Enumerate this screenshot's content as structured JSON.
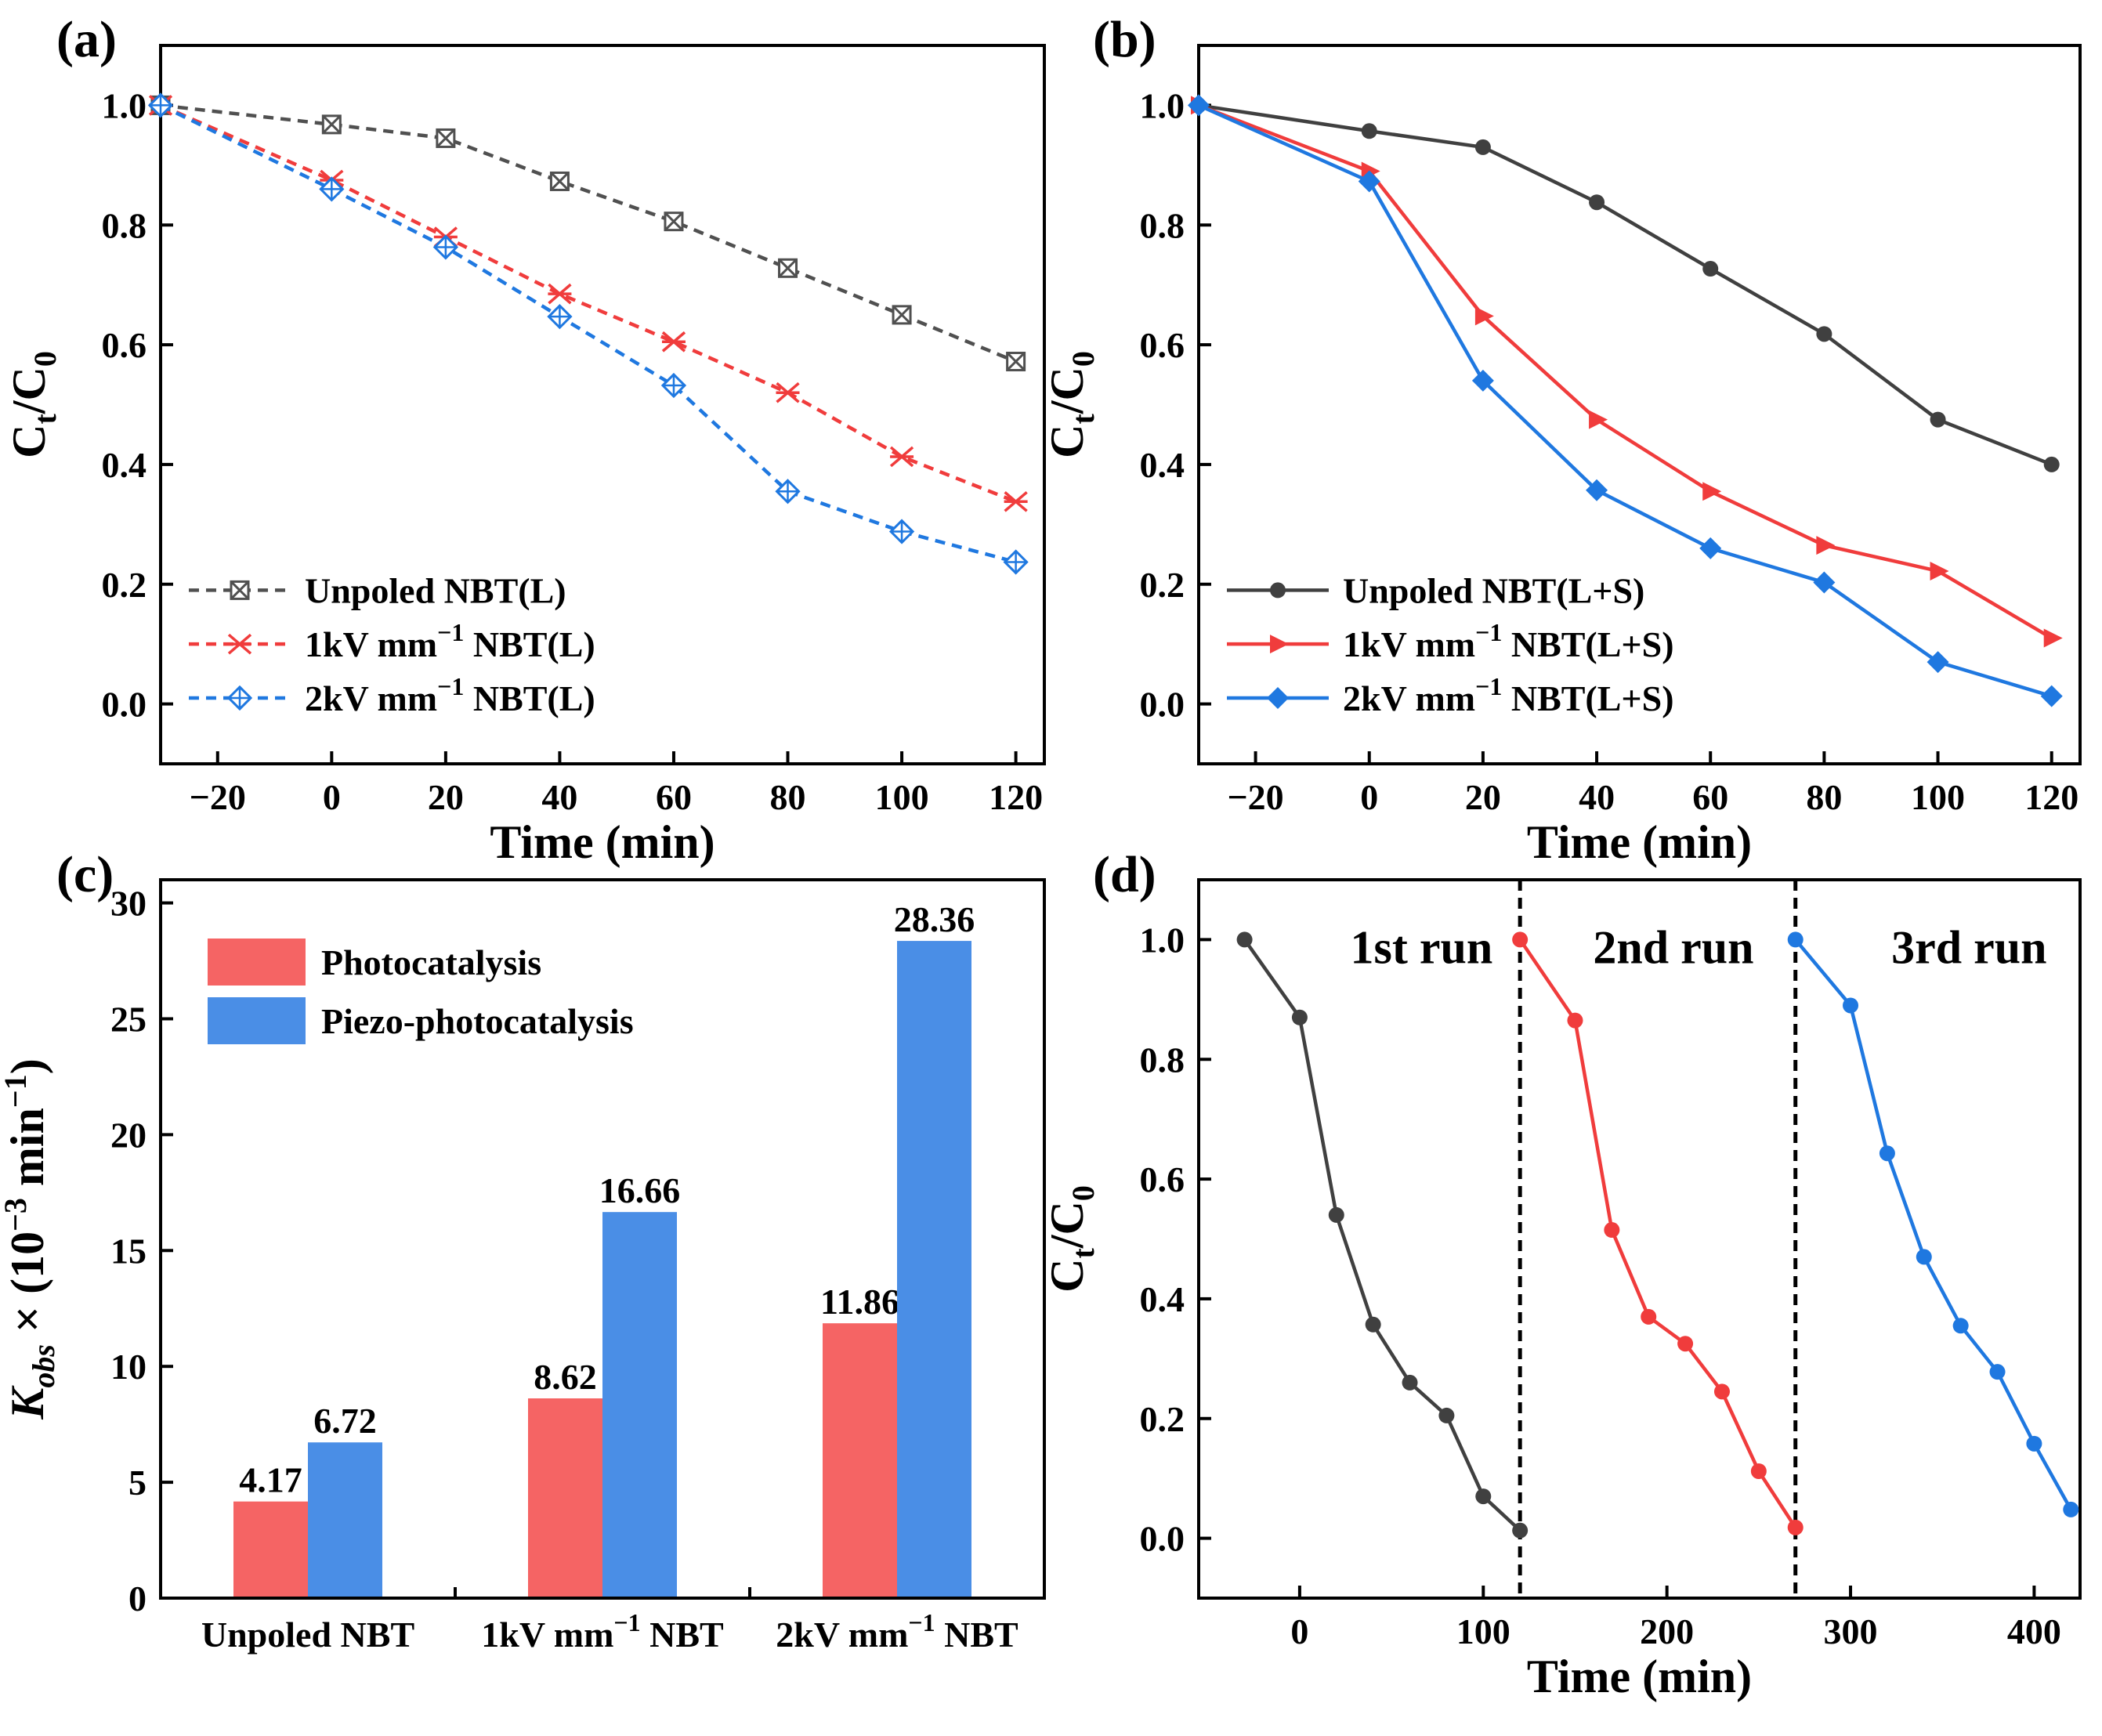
{
  "chart_data": [
    {
      "id": "a",
      "type": "line",
      "panel_label": "(a)",
      "xlabel": "Time (min)",
      "ylabel": "Ct/C0",
      "ylabel_parts": {
        "main": "C",
        "sub1": "t",
        "slash": "/C",
        "sub2": "0"
      },
      "xlim": [
        -30,
        125
      ],
      "ylim": [
        -0.1,
        1.1
      ],
      "xticks": [
        -20,
        0,
        20,
        40,
        60,
        80,
        100,
        120
      ],
      "xtick_labels": [
        "−20",
        "0",
        "20",
        "40",
        "60",
        "80",
        "100",
        "120"
      ],
      "yticks": [
        0.0,
        0.2,
        0.4,
        0.6,
        0.8,
        1.0
      ],
      "ytick_labels": [
        "0.0",
        "0.2",
        "0.4",
        "0.6",
        "0.8",
        "1.0"
      ],
      "legend_position": "bottom-left",
      "x": [
        -30,
        0,
        20,
        40,
        60,
        80,
        100,
        120
      ],
      "series": [
        {
          "name": "Unpoled NBT(L)",
          "legend": {
            "pre": "Unpoled NBT(L)",
            "sup": "",
            "post": ""
          },
          "color": "#505050",
          "dash": true,
          "marker": "square-x",
          "values": [
            1.0,
            0.968,
            0.945,
            0.873,
            0.806,
            0.728,
            0.65,
            0.572
          ]
        },
        {
          "name": "1kV mm⁻¹ NBT(L)",
          "legend": {
            "pre": "1kV mm",
            "sup": "−1",
            "post": " NBT(L)"
          },
          "color": "#f03c3c",
          "dash": true,
          "marker": "cross-x",
          "values": [
            1.0,
            0.875,
            0.78,
            0.685,
            0.605,
            0.52,
            0.413,
            0.338
          ]
        },
        {
          "name": "2kV mm⁻¹ NBT(L)",
          "legend": {
            "pre": "2kV mm",
            "sup": "−1",
            "post": " NBT(L)"
          },
          "color": "#1f78e0",
          "dash": true,
          "marker": "diamond-plus",
          "values": [
            1.0,
            0.86,
            0.763,
            0.647,
            0.532,
            0.355,
            0.288,
            0.237
          ]
        }
      ]
    },
    {
      "id": "b",
      "type": "line",
      "panel_label": "(b)",
      "xlabel": "Time (min)",
      "ylabel": "Ct/C0",
      "ylabel_parts": {
        "main": "C",
        "sub1": "t",
        "slash": "/C",
        "sub2": "0"
      },
      "xlim": [
        -30,
        125
      ],
      "ylim": [
        -0.1,
        1.1
      ],
      "xticks": [
        -20,
        0,
        20,
        40,
        60,
        80,
        100,
        120
      ],
      "xtick_labels": [
        "−20",
        "0",
        "20",
        "40",
        "60",
        "80",
        "100",
        "120"
      ],
      "yticks": [
        0.0,
        0.2,
        0.4,
        0.6,
        0.8,
        1.0
      ],
      "ytick_labels": [
        "0.0",
        "0.2",
        "0.4",
        "0.6",
        "0.8",
        "1.0"
      ],
      "legend_position": "bottom-left",
      "x": [
        -30,
        0,
        20,
        40,
        60,
        80,
        100,
        120
      ],
      "series": [
        {
          "name": "Unpoled NBT(L+S)",
          "legend": {
            "pre": "Unpoled NBT(L+S)",
            "sup": "",
            "post": ""
          },
          "color": "#404040",
          "dash": false,
          "marker": "circle",
          "values": [
            1.0,
            0.957,
            0.93,
            0.838,
            0.727,
            0.618,
            0.475,
            0.4
          ]
        },
        {
          "name": "1kV mm⁻¹ NBT(L+S)",
          "legend": {
            "pre": "1kV mm",
            "sup": "−1",
            "post": " NBT(L+S)"
          },
          "color": "#f03c3c",
          "dash": false,
          "marker": "triangle-right",
          "values": [
            1.0,
            0.89,
            0.648,
            0.475,
            0.355,
            0.265,
            0.222,
            0.11
          ]
        },
        {
          "name": "2kV mm⁻¹ NBT(L+S)",
          "legend": {
            "pre": "2kV mm",
            "sup": "−1",
            "post": " NBT(L+S)"
          },
          "color": "#1f78e0",
          "dash": false,
          "marker": "diamond",
          "values": [
            1.0,
            0.873,
            0.54,
            0.357,
            0.26,
            0.203,
            0.07,
            0.013
          ]
        }
      ]
    },
    {
      "id": "c",
      "type": "bar",
      "panel_label": "(c)",
      "ylabel": "Kobs × (10⁻³ min⁻¹)",
      "ylabel_parts": {
        "main": "K",
        "sub": "obs",
        "mid": " × (10",
        "sup1": "−3",
        "mid2": " min",
        "sup2": "−1",
        "end": ")"
      },
      "ylim": [
        0,
        31
      ],
      "yticks": [
        0,
        5,
        10,
        15,
        20,
        25,
        30
      ],
      "ytick_labels": [
        "0",
        "5",
        "10",
        "15",
        "20",
        "25",
        "30"
      ],
      "legend_position": "top-left",
      "categories": [
        "Unpoled NBT",
        "1kV mm⁻¹ NBT",
        "2kV mm⁻¹ NBT"
      ],
      "category_parts": [
        {
          "pre": "Unpoled NBT",
          "sup": "",
          "post": ""
        },
        {
          "pre": "1kV mm",
          "sup": "−1",
          "post": " NBT"
        },
        {
          "pre": "2kV mm",
          "sup": "−1",
          "post": " NBT"
        }
      ],
      "series": [
        {
          "name": "Photocatalysis",
          "color": "#f56464",
          "values": [
            4.17,
            8.62,
            11.86
          ],
          "labels": [
            "4.17",
            "8.62",
            "11.86"
          ]
        },
        {
          "name": "Piezo-photocatalysis",
          "color": "#4a8ee6",
          "values": [
            6.72,
            16.66,
            28.36
          ],
          "labels": [
            "6.72",
            "16.66",
            "28.36"
          ]
        }
      ]
    },
    {
      "id": "d",
      "type": "line",
      "panel_label": "(d)",
      "xlabel": "Time (min)",
      "ylabel": "Ct/C0",
      "ylabel_parts": {
        "main": "C",
        "sub1": "t",
        "slash": "/C",
        "sub2": "0"
      },
      "xlim": [
        -55,
        425
      ],
      "ylim": [
        -0.1,
        1.1
      ],
      "xticks": [
        0,
        100,
        200,
        300,
        400
      ],
      "xtick_labels": [
        "0",
        "100",
        "200",
        "300",
        "400"
      ],
      "yticks": [
        0.0,
        0.2,
        0.4,
        0.6,
        0.8,
        1.0
      ],
      "ytick_labels": [
        "0.0",
        "0.2",
        "0.4",
        "0.6",
        "0.8",
        "1.0"
      ],
      "vlines": [
        120,
        270
      ],
      "annotations": [
        "1st run",
        "2nd run",
        "3rd run"
      ],
      "series": [
        {
          "name": "1st run",
          "color": "#404040",
          "marker": "circle",
          "x": [
            -30,
            0,
            20,
            40,
            60,
            80,
            100,
            120
          ],
          "values": [
            1.0,
            0.87,
            0.54,
            0.357,
            0.26,
            0.205,
            0.07,
            0.013
          ]
        },
        {
          "name": "2nd run",
          "color": "#f03c3c",
          "marker": "circle",
          "x": [
            120,
            150,
            170,
            190,
            210,
            230,
            250,
            270
          ],
          "values": [
            1.0,
            0.865,
            0.515,
            0.37,
            0.325,
            0.245,
            0.112,
            0.018
          ]
        },
        {
          "name": "3rd run",
          "color": "#1f78e0",
          "marker": "circle",
          "x": [
            270,
            300,
            320,
            340,
            360,
            380,
            400,
            420
          ],
          "values": [
            1.0,
            0.89,
            0.643,
            0.47,
            0.355,
            0.278,
            0.158,
            0.048
          ]
        }
      ]
    }
  ]
}
